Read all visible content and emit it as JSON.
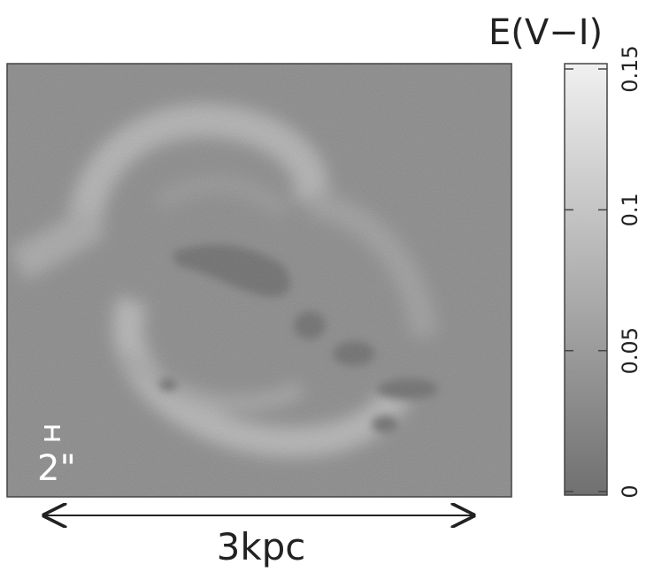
{
  "image": {
    "angular_scale_label": "2\""
  },
  "colorbar": {
    "label": "E(V−I)",
    "lim": [
      0,
      0.15
    ],
    "ticks": [
      0,
      0.05,
      0.1,
      0.15
    ]
  },
  "scale_bar": {
    "label": "3kpc"
  }
}
